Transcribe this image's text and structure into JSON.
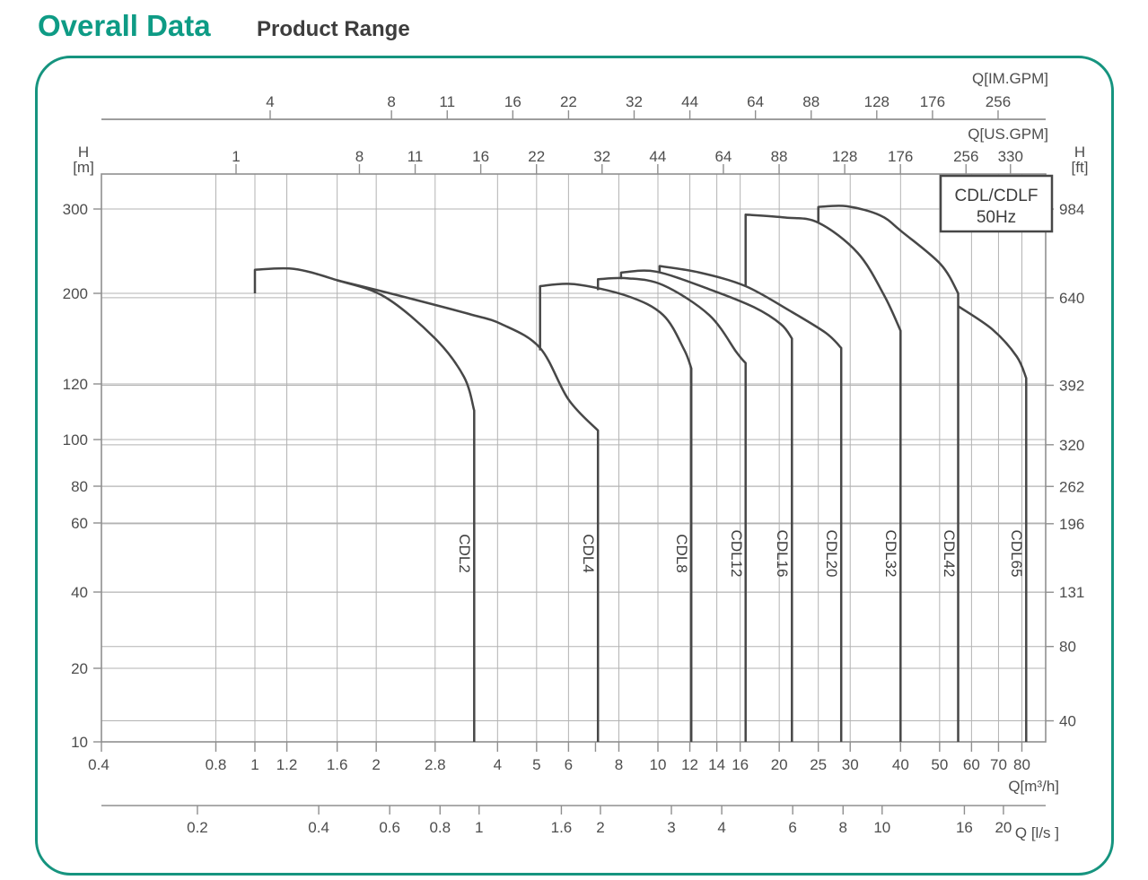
{
  "page": {
    "title_primary": "Overall Data",
    "title_secondary": "Product Range"
  },
  "chart_data": {
    "type": "line",
    "title": "CDL/CDLF 50Hz",
    "legend": {
      "line1": "CDL/CDLF",
      "line2": "50Hz"
    },
    "axes": {
      "top_outer": {
        "unit": "Q[IM.GPM]",
        "ticks": [
          4,
          8,
          11,
          16,
          22,
          32,
          44,
          64,
          88,
          128,
          176,
          256
        ]
      },
      "top_inner": {
        "unit": "Q[US.GPM]",
        "ticks": [
          1,
          8,
          11,
          16,
          22,
          32,
          44,
          64,
          88,
          128,
          176,
          256,
          330
        ]
      },
      "left": {
        "unit_line1": "H",
        "unit_line2": "[m]",
        "ticks": [
          300,
          200,
          120,
          100,
          80,
          60,
          40,
          20,
          10
        ]
      },
      "right": {
        "unit_line1": "H",
        "unit_line2": "[ft]",
        "ticks": [
          984,
          640,
          392,
          320,
          262,
          196,
          131,
          80,
          40
        ]
      },
      "bottom_m3h": {
        "unit": "Q[m³/h]",
        "ticks": [
          0.4,
          0.8,
          1,
          1.2,
          1.6,
          2,
          2.8,
          4,
          5,
          6,
          8,
          10,
          12,
          14,
          16,
          20,
          25,
          30,
          40,
          50,
          60,
          70,
          80
        ],
        "minor_ticks": [
          7
        ]
      },
      "bottom_ls": {
        "unit": "Q [l/s ]",
        "ticks": [
          0.2,
          0.4,
          0.6,
          0.8,
          1,
          1.6,
          2,
          3,
          4,
          6,
          8,
          10,
          16,
          20
        ]
      }
    },
    "x_unit": "m3/h",
    "y_unit": "m",
    "series": [
      {
        "name": "CDL2",
        "points": [
          [
            1,
            200
          ],
          [
            1,
            224
          ],
          [
            1.25,
            225
          ],
          [
            1.6,
            213
          ],
          [
            2.1,
            196
          ],
          [
            2.8,
            155
          ],
          [
            3.3,
            125
          ],
          [
            3.5,
            110
          ],
          [
            3.5,
            10
          ]
        ]
      },
      {
        "name": "CDL4",
        "points": [
          [
            1.6,
            213
          ],
          [
            2.3,
            197
          ],
          [
            3.4,
            178
          ],
          [
            4.1,
            168
          ],
          [
            5.1,
            147
          ],
          [
            6,
            114
          ],
          [
            7.1,
            103
          ],
          [
            7.1,
            10
          ]
        ]
      },
      {
        "name": "CDL8",
        "points": [
          [
            5.1,
            145
          ],
          [
            5.1,
            207
          ],
          [
            6.2,
            209
          ],
          [
            8.4,
            197
          ],
          [
            10.3,
            177
          ],
          [
            11.6,
            146
          ],
          [
            12.1,
            131
          ],
          [
            12.1,
            10
          ]
        ]
      },
      {
        "name": "CDL12",
        "points": [
          [
            7.1,
            203
          ],
          [
            7.1,
            214
          ],
          [
            8.4,
            215
          ],
          [
            10.3,
            208
          ],
          [
            13.4,
            177
          ],
          [
            15.7,
            143
          ],
          [
            16.5,
            135
          ],
          [
            16.5,
            10
          ]
        ]
      },
      {
        "name": "CDL16",
        "points": [
          [
            8.1,
            214
          ],
          [
            8.1,
            221
          ],
          [
            9.9,
            222
          ],
          [
            13.4,
            204
          ],
          [
            17.3,
            185
          ],
          [
            20.2,
            168
          ],
          [
            21.5,
            155
          ],
          [
            21.5,
            10
          ]
        ]
      },
      {
        "name": "CDL20",
        "points": [
          [
            10.1,
            222
          ],
          [
            10.1,
            228
          ],
          [
            12.7,
            221
          ],
          [
            16.5,
            207
          ],
          [
            21.3,
            181
          ],
          [
            26.1,
            160
          ],
          [
            28.5,
            147
          ],
          [
            28.5,
            10
          ]
        ]
      },
      {
        "name": "CDL32",
        "points": [
          [
            16.5,
            207
          ],
          [
            16.5,
            292
          ],
          [
            20.7,
            288
          ],
          [
            25,
            281
          ],
          [
            31.3,
            243
          ],
          [
            36.4,
            198
          ],
          [
            40,
            162
          ],
          [
            40,
            10
          ]
        ]
      },
      {
        "name": "CDL42",
        "points": [
          [
            25,
            281
          ],
          [
            25,
            303
          ],
          [
            29.4,
            304
          ],
          [
            35.6,
            291
          ],
          [
            40.3,
            269
          ],
          [
            50.3,
            230
          ],
          [
            55.6,
            200
          ],
          [
            55.6,
            10
          ]
        ]
      },
      {
        "name": "CDL65",
        "points": [
          [
            55.6,
            186
          ],
          [
            67.7,
            163
          ],
          [
            77.7,
            140
          ],
          [
            82,
            124
          ],
          [
            82,
            10
          ]
        ]
      }
    ],
    "colors": {
      "accent_teal": "#0e9b85",
      "border_teal": "#16947f",
      "curve": "#474747",
      "grid": "#b3b3b3",
      "frame": "#8f8f8f",
      "tick_text": "#4d4d4d",
      "title_secondary": "#3d3d3d"
    }
  }
}
